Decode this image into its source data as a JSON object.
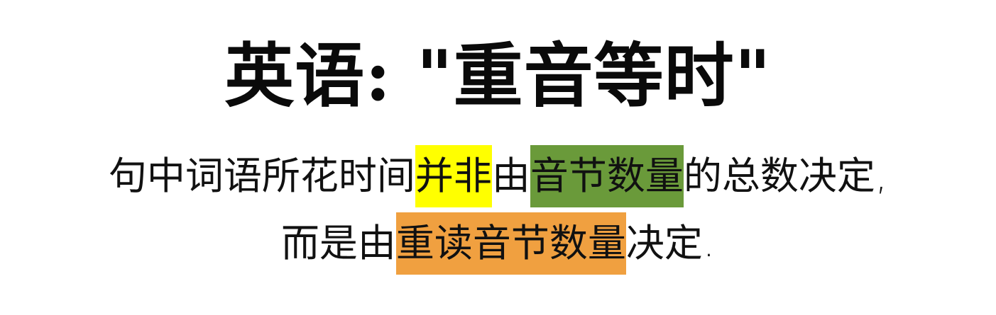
{
  "title": "英语: \"重音等时\"",
  "line1": {
    "part1": "句中词语所花时间",
    "highlight_yellow": "并非",
    "part2": "由",
    "highlight_green": "音节数量",
    "part3": "的总数决定,"
  },
  "line2": {
    "part1": "而是由",
    "highlight_orange": "重读音节数量",
    "part2": "决定."
  },
  "colors": {
    "yellow_highlight": "#ffff00",
    "green_highlight": "#6a9a3a",
    "orange_highlight": "#f0a040",
    "text": "#111111",
    "background": "#ffffff"
  }
}
